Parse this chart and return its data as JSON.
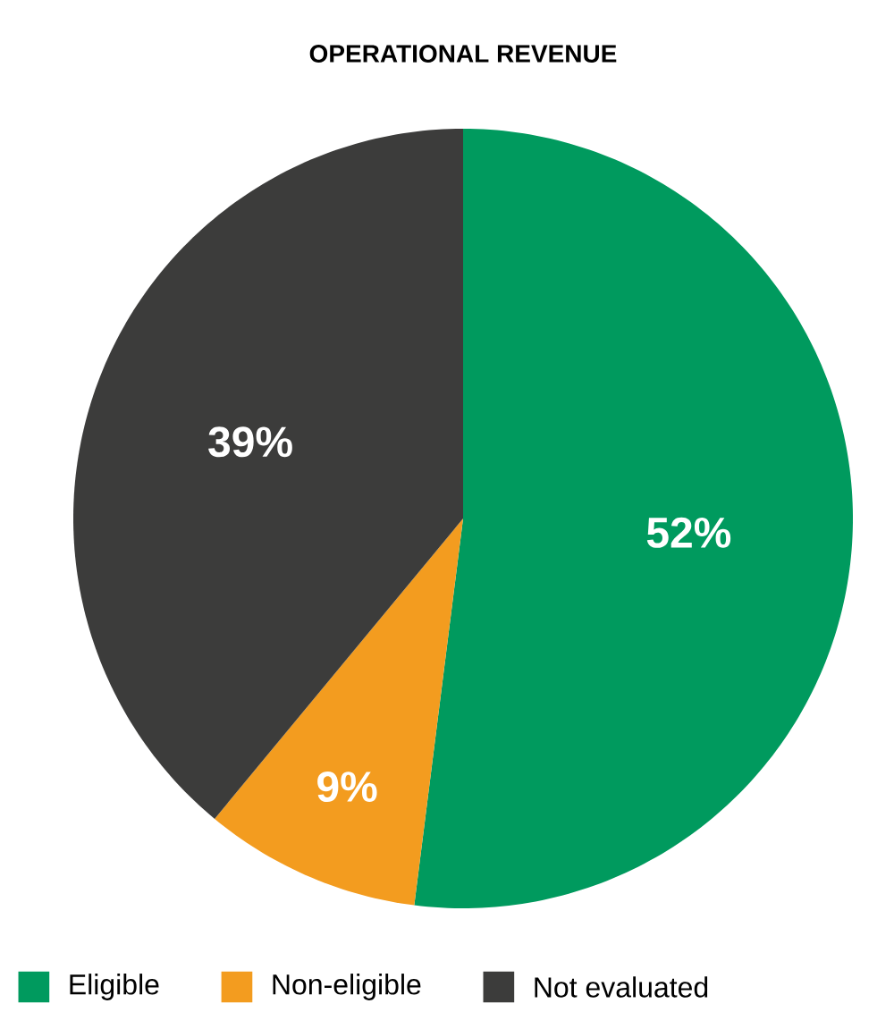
{
  "chart_data": {
    "type": "pie",
    "title": "OPERATIONAL REVENUE",
    "categories": [
      "Eligible",
      "Non-eligible",
      "Not evaluated"
    ],
    "values": [
      52,
      9,
      39
    ],
    "colors": [
      "#009a5e",
      "#f39c1f",
      "#3c3c3b"
    ],
    "value_labels": [
      "52%",
      "9%",
      "39%"
    ],
    "legend": "bottom"
  }
}
